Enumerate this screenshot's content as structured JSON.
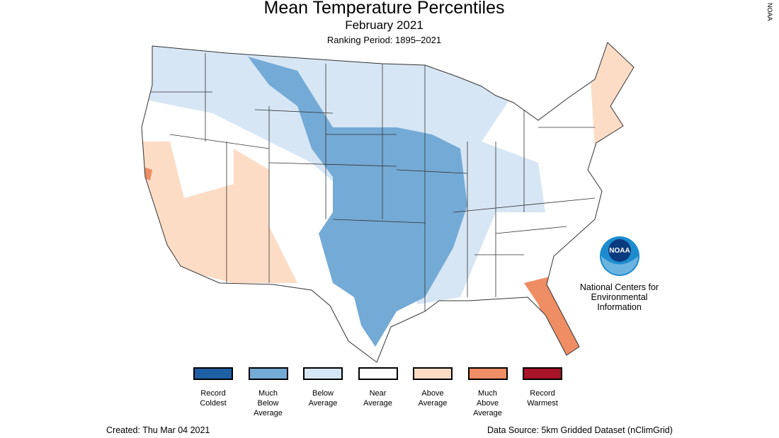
{
  "header": {
    "title": "Mean Temperature Percentiles",
    "subtitle": "February 2021",
    "period": "Ranking Period: 1895–2021"
  },
  "logo": {
    "text": "NOAA",
    "organization": "National Centers for Environmental Information"
  },
  "legend": [
    {
      "label": "Record Coldest",
      "color": "#1f5fa3"
    },
    {
      "label": "Much Below Average",
      "color": "#74aad6"
    },
    {
      "label": "Below Average",
      "color": "#d5e6f5"
    },
    {
      "label": "Near Average",
      "color": "#ffffff"
    },
    {
      "label": "Above Average",
      "color": "#fddcc6"
    },
    {
      "label": "Much Above Average",
      "color": "#ef8d64"
    },
    {
      "label": "Record Warmest",
      "color": "#a8142a"
    }
  ],
  "footer": {
    "created": "Created: Thu Mar 04 2021",
    "source": "Data Source: 5km Gridded Dataset (nClimGrid)"
  },
  "watermark": "NOAA"
}
